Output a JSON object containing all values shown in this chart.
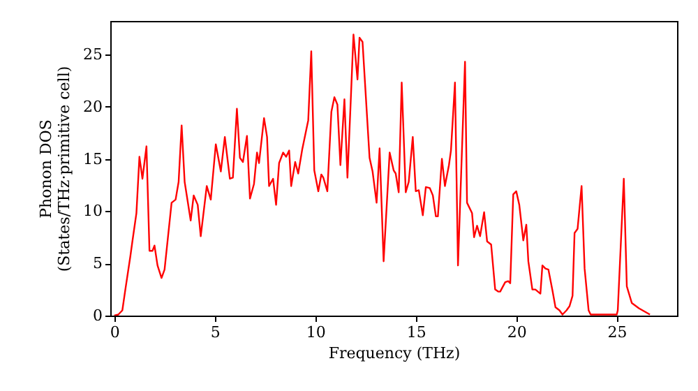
{
  "chart_data": {
    "type": "line",
    "xlabel": "Frequency (THz)",
    "ylabel": "Phonon DOS\n(States/THz·primitive cell)",
    "xlim": [
      -0.2,
      28
    ],
    "ylim": [
      0,
      28.2
    ],
    "xticks": [
      0,
      5,
      10,
      15,
      20,
      25
    ],
    "yticks": [
      0,
      5,
      10,
      15,
      20,
      25
    ],
    "grid": false,
    "marker": "none",
    "line_style": "solid",
    "x": [
      0,
      0.2,
      0.4,
      0.55,
      0.8,
      0.9,
      1.1,
      1.25,
      1.4,
      1.6,
      1.75,
      1.9,
      2.0,
      2.15,
      2.35,
      2.5,
      2.85,
      3.05,
      3.2,
      3.35,
      3.5,
      3.8,
      3.95,
      4.15,
      4.3,
      4.6,
      4.8,
      5.05,
      5.3,
      5.5,
      5.75,
      5.9,
      6.1,
      6.25,
      6.4,
      6.6,
      6.75,
      6.95,
      7.1,
      7.2,
      7.45,
      7.6,
      7.7,
      7.9,
      8.05,
      8.2,
      8.4,
      8.55,
      8.7,
      8.8,
      9.0,
      9.15,
      9.35,
      9.65,
      9.8,
      9.95,
      10.15,
      10.3,
      10.4,
      10.6,
      10.8,
      10.95,
      11.1,
      11.25,
      11.45,
      11.6,
      11.75,
      11.9,
      12.1,
      12.2,
      12.35,
      12.7,
      12.85,
      13.05,
      13.2,
      13.4,
      13.7,
      13.9,
      14.0,
      14.15,
      14.3,
      14.5,
      14.65,
      14.85,
      15.0,
      15.15,
      15.35,
      15.5,
      15.7,
      15.85,
      16.0,
      16.1,
      16.3,
      16.45,
      16.65,
      16.75,
      16.95,
      17.1,
      17.45,
      17.55,
      17.8,
      17.9,
      18.05,
      18.2,
      18.4,
      18.55,
      18.75,
      18.95,
      19.1,
      19.2,
      19.45,
      19.6,
      19.7,
      19.85,
      20.0,
      20.15,
      20.35,
      20.5,
      20.6,
      20.8,
      20.95,
      21.2,
      21.3,
      21.45,
      21.6,
      21.8,
      21.95,
      22.15,
      22.3,
      22.5,
      22.65,
      22.8,
      22.9,
      23.05,
      23.25,
      23.4,
      23.6,
      23.7,
      25.0,
      25.05,
      25.35,
      25.5,
      25.75,
      26.1,
      26.65
    ],
    "series": [
      {
        "color": "#ff0000",
        "values": [
          0,
          0.1,
          0.5,
          2.5,
          5.7,
          7.1,
          9.8,
          15.2,
          13.1,
          16.2,
          6.2,
          6.2,
          6.7,
          4.8,
          3.6,
          4.4,
          10.8,
          11.1,
          12.8,
          18.2,
          12.8,
          9.1,
          11.5,
          10.6,
          7.6,
          12.4,
          11.1,
          16.4,
          13.8,
          17.1,
          13.1,
          13.2,
          19.8,
          15.1,
          14.7,
          17.2,
          11.2,
          12.6,
          15.6,
          14.6,
          18.9,
          17.1,
          12.4,
          13.1,
          10.6,
          14.6,
          15.6,
          15.2,
          15.8,
          12.4,
          14.7,
          13.6,
          15.9,
          18.7,
          25.3,
          13.9,
          11.9,
          13.5,
          13.2,
          11.9,
          19.5,
          20.9,
          20.2,
          14.4,
          20.7,
          13.2,
          19.9,
          26.9,
          22.6,
          26.6,
          26.2,
          15.1,
          13.8,
          10.8,
          16.0,
          5.2,
          15.6,
          13.9,
          13.6,
          11.8,
          22.3,
          11.8,
          12.8,
          17.1,
          11.9,
          12.0,
          9.6,
          12.3,
          12.2,
          11.5,
          9.5,
          9.5,
          15.0,
          12.4,
          14.4,
          15.8,
          22.3,
          4.8,
          24.3,
          10.8,
          9.8,
          7.5,
          8.6,
          7.6,
          9.9,
          7.1,
          6.8,
          2.5,
          2.3,
          2.3,
          3.2,
          3.3,
          3.1,
          11.6,
          11.9,
          10.6,
          7.2,
          8.7,
          5.2,
          2.5,
          2.5,
          2.1,
          4.8,
          4.5,
          4.4,
          2.4,
          0.8,
          0.5,
          0.1,
          0.5,
          0.9,
          1.9,
          7.9,
          8.3,
          12.4,
          4.5,
          0.5,
          0.1,
          0.1,
          0.5,
          13.1,
          2.8,
          1.2,
          0.7,
          0.1
        ]
      }
    ]
  }
}
